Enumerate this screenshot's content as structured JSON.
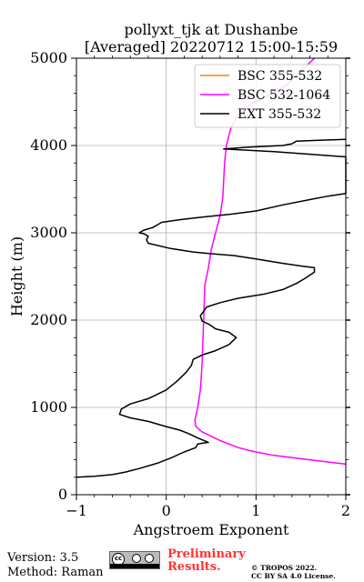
{
  "chart_data": {
    "type": "line",
    "title": "pollyxt_tjk at Dushanbe",
    "subtitle": "[Averaged] 20220712 15:00-15:59",
    "xlabel": "Angstroem Exponent",
    "ylabel": "Height (m)",
    "xlim": [
      -1,
      2
    ],
    "ylim": [
      0,
      5000
    ],
    "xticks": [
      -1,
      0,
      1,
      2
    ],
    "yticks": [
      0,
      1000,
      2000,
      3000,
      4000,
      5000
    ],
    "grid": true,
    "legend_position": "top-right",
    "series": [
      {
        "name": "BSC 355-532",
        "color": "#ff7f0e",
        "points": []
      },
      {
        "name": "BSC 532-1064",
        "color": "#ff00ff",
        "points": [
          [
            2.0,
            350
          ],
          [
            1.6,
            400
          ],
          [
            1.2,
            450
          ],
          [
            0.95,
            500
          ],
          [
            0.8,
            540
          ],
          [
            0.7,
            580
          ],
          [
            0.6,
            620
          ],
          [
            0.5,
            670
          ],
          [
            0.4,
            720
          ],
          [
            0.33,
            780
          ],
          [
            0.32,
            850
          ],
          [
            0.35,
            1000
          ],
          [
            0.38,
            1200
          ],
          [
            0.4,
            1500
          ],
          [
            0.41,
            1800
          ],
          [
            0.42,
            2100
          ],
          [
            0.43,
            2400
          ],
          [
            0.47,
            2600
          ],
          [
            0.5,
            2800
          ],
          [
            0.55,
            3000
          ],
          [
            0.6,
            3200
          ],
          [
            0.63,
            3400
          ],
          [
            0.64,
            3600
          ],
          [
            0.65,
            3800
          ],
          [
            0.67,
            4000
          ],
          [
            0.72,
            4200
          ],
          [
            0.8,
            4350
          ],
          [
            0.95,
            4480
          ],
          [
            1.15,
            4580
          ],
          [
            1.35,
            4700
          ],
          [
            1.5,
            4850
          ],
          [
            1.6,
            4950
          ],
          [
            1.65,
            5000
          ]
        ]
      },
      {
        "name": "EXT 355-532",
        "color": "#000000",
        "points": [
          [
            -1.0,
            200
          ],
          [
            -0.8,
            210
          ],
          [
            -0.6,
            230
          ],
          [
            -0.45,
            260
          ],
          [
            -0.3,
            300
          ],
          [
            -0.1,
            360
          ],
          [
            0.05,
            420
          ],
          [
            0.2,
            490
          ],
          [
            0.33,
            540
          ],
          [
            0.35,
            580
          ],
          [
            0.47,
            600
          ],
          [
            0.35,
            650
          ],
          [
            0.25,
            700
          ],
          [
            0.15,
            740
          ],
          [
            0.0,
            780
          ],
          [
            -0.2,
            840
          ],
          [
            -0.4,
            880
          ],
          [
            -0.52,
            920
          ],
          [
            -0.5,
            980
          ],
          [
            -0.4,
            1040
          ],
          [
            -0.2,
            1100
          ],
          [
            0.0,
            1200
          ],
          [
            0.12,
            1300
          ],
          [
            0.22,
            1400
          ],
          [
            0.28,
            1480
          ],
          [
            0.3,
            1550
          ],
          [
            0.4,
            1600
          ],
          [
            0.55,
            1650
          ],
          [
            0.7,
            1720
          ],
          [
            0.78,
            1800
          ],
          [
            0.7,
            1860
          ],
          [
            0.55,
            1900
          ],
          [
            0.48,
            1950
          ],
          [
            0.4,
            1990
          ],
          [
            0.38,
            2050
          ],
          [
            0.45,
            2150
          ],
          [
            0.6,
            2200
          ],
          [
            0.8,
            2250
          ],
          [
            1.1,
            2300
          ],
          [
            1.3,
            2350
          ],
          [
            1.45,
            2420
          ],
          [
            1.55,
            2480
          ],
          [
            1.65,
            2550
          ],
          [
            1.65,
            2600
          ],
          [
            1.5,
            2620
          ],
          [
            1.3,
            2650
          ],
          [
            1.0,
            2700
          ],
          [
            0.75,
            2740
          ],
          [
            0.5,
            2760
          ],
          [
            0.3,
            2780
          ],
          [
            0.05,
            2820
          ],
          [
            -0.2,
            2880
          ],
          [
            -0.22,
            2920
          ],
          [
            -0.2,
            2960
          ],
          [
            -0.25,
            2990
          ],
          [
            -0.3,
            3000
          ],
          [
            -0.25,
            3030
          ],
          [
            -0.15,
            3060
          ],
          [
            -0.1,
            3090
          ],
          [
            -0.05,
            3120
          ],
          [
            0.15,
            3150
          ],
          [
            0.4,
            3180
          ],
          [
            0.7,
            3210
          ],
          [
            1.0,
            3250
          ],
          [
            1.3,
            3320
          ],
          [
            1.6,
            3380
          ],
          [
            1.8,
            3420
          ],
          [
            2.0,
            3450
          ],
          [
            2.0,
            3870
          ],
          [
            1.6,
            3900
          ],
          [
            1.2,
            3930
          ],
          [
            0.64,
            3960
          ],
          [
            0.9,
            3980
          ],
          [
            1.3,
            4000
          ],
          [
            1.4,
            4020
          ],
          [
            1.45,
            4050
          ],
          [
            1.7,
            4060
          ],
          [
            2.0,
            4070
          ]
        ]
      }
    ]
  },
  "footer": {
    "version": "Version: 3.5",
    "method": "Method: Raman",
    "license_badge_text": "cc BY SA",
    "preliminary_line1": "Preliminary",
    "preliminary_line2": "Results.",
    "copyright_line1": "© TROPOS 2022.",
    "copyright_line2": "CC BY SA 4.0 License."
  }
}
